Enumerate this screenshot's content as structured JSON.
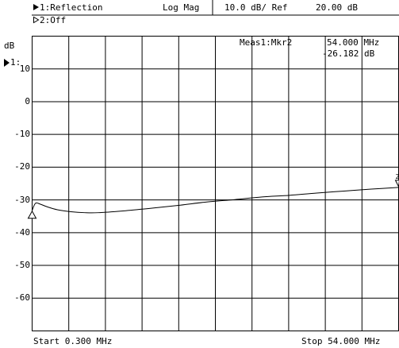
{
  "header": {
    "trace1_label": "1:Reflection",
    "trace2_label": "2:Off",
    "format": "Log Mag",
    "scale": "10.0 dB/ Ref",
    "ref_value": "20.00 dB"
  },
  "y_axis": {
    "unit": "dB",
    "ref_marker_label": "1:",
    "ticks": [
      "10",
      "0",
      "-10",
      "-20",
      "-30",
      "-40",
      "-50",
      "-60"
    ]
  },
  "marker_readout": {
    "name": "Meas1:Mkr2",
    "frequency": "54.000 MHz",
    "value": "-26.182 dB"
  },
  "footer": {
    "start": "Start 0.300 MHz",
    "stop": "Stop 54.000 MHz"
  },
  "chart_data": {
    "type": "line",
    "title": "",
    "xlabel": "",
    "ylabel": "dB",
    "xlim": [
      0.3,
      54.0
    ],
    "ylim": [
      -70,
      20
    ],
    "grid": true,
    "series": [
      {
        "x": [
          0.3,
          0.8,
          1.5,
          2.5,
          4,
          6,
          8,
          10,
          14,
          18,
          22,
          26,
          30,
          34,
          38,
          42,
          46,
          50,
          54
        ],
        "y": [
          -33.2,
          -31.0,
          -31.3,
          -32.1,
          -33.0,
          -33.6,
          -33.9,
          -33.9,
          -33.3,
          -32.5,
          -31.6,
          -30.6,
          -29.9,
          -29.1,
          -28.6,
          -27.9,
          -27.3,
          -26.7,
          -26.18
        ]
      }
    ],
    "markers": [
      {
        "name": "1",
        "x": 0.3,
        "y": -33.2
      },
      {
        "name": "2",
        "x": 54.0,
        "y": -26.182
      }
    ]
  }
}
